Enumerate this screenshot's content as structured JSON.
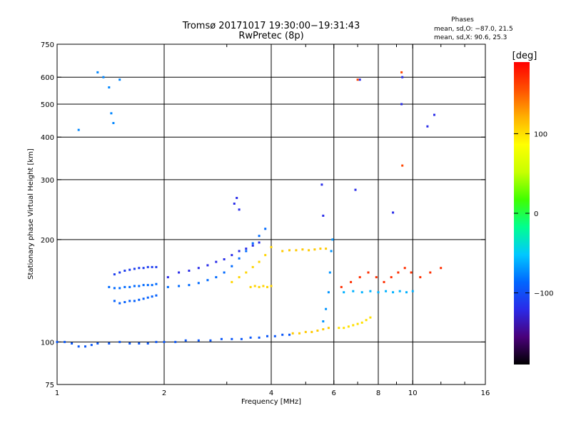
{
  "header": {
    "title": "Tromsø 20171017 19:30:00−19:31:43",
    "subtitle": "RwPretec (8p)",
    "phase_title": "Phases",
    "phase_line1": "mean, sd,O: −87.0, 21.5",
    "phase_line2": "mean, sd,X:  90.6, 25.3"
  },
  "colorbar": {
    "label": "[deg]",
    "range": [
      -190,
      190
    ],
    "ticks": [
      {
        "value": 100,
        "label": "100"
      },
      {
        "value": 0,
        "label": "0"
      },
      {
        "value": -100,
        "label": "−100"
      }
    ],
    "stops": [
      "#000000",
      "#4a007a",
      "#2a2ae8",
      "#0066ff",
      "#00c8ff",
      "#00ff90",
      "#40ff00",
      "#c8ff00",
      "#ffff00",
      "#ffb000",
      "#ff5000",
      "#ff0000"
    ]
  },
  "chart_data": {
    "type": "scatter",
    "title": "Tromsø 20171017 19:30:00−19:31:43",
    "subtitle": "RwPretec (8p)",
    "xlabel": "Frequency [MHz]",
    "ylabel": "Stationary phase Virtual Height [km]",
    "xscale": "log",
    "yscale": "log",
    "xlim": [
      1,
      16
    ],
    "ylim": [
      75,
      750
    ],
    "x_ticks": [
      {
        "value": 1,
        "label": "1"
      },
      {
        "value": 2,
        "label": "2"
      },
      {
        "value": 4,
        "label": "4"
      },
      {
        "value": 6,
        "label": "6"
      },
      {
        "value": 8,
        "label": "8"
      },
      {
        "value": 10,
        "label": "10"
      },
      {
        "value": 16,
        "label": "16"
      }
    ],
    "y_ticks": [
      {
        "value": 75,
        "label": "75"
      },
      {
        "value": 100,
        "label": "100"
      },
      {
        "value": 200,
        "label": "200"
      },
      {
        "value": 300,
        "label": "300"
      },
      {
        "value": 400,
        "label": "400"
      },
      {
        "value": 500,
        "label": "500"
      },
      {
        "value": 600,
        "label": "600"
      },
      {
        "value": 750,
        "label": "750"
      }
    ],
    "grid_x": [
      2,
      4,
      6,
      8,
      10
    ],
    "grid_y": [
      100,
      200,
      300,
      400,
      500,
      600
    ],
    "minor_x": [
      3,
      5,
      7,
      9,
      12,
      14
    ],
    "series": [
      {
        "x": [
          1.0,
          1.05,
          1.1,
          1.15,
          1.2,
          1.25,
          1.3,
          1.4,
          1.5,
          1.6,
          1.7,
          1.8,
          1.9,
          2.0,
          2.15,
          2.3,
          2.5,
          2.7,
          2.9,
          3.1,
          3.3,
          3.5,
          3.7,
          3.9,
          4.1,
          4.3,
          4.5
        ],
        "y": [
          100,
          100,
          99,
          97,
          97,
          98,
          99,
          99,
          100,
          99,
          99,
          99,
          100,
          100,
          100,
          101,
          101,
          101,
          102,
          102,
          102,
          103,
          103,
          104,
          104,
          105,
          105
        ],
        "phase": -95
      },
      {
        "x": [
          4.6,
          4.8,
          5.0,
          5.2,
          5.4,
          5.6,
          5.8
        ],
        "y": [
          106,
          106,
          107,
          107,
          108,
          109,
          110
        ],
        "phase": 110
      },
      {
        "x": [
          5.6,
          5.7,
          5.8,
          5.85,
          5.9,
          5.95
        ],
        "y": [
          115,
          125,
          140,
          160,
          185,
          200
        ],
        "phase": -70
      },
      {
        "x": [
          6.2,
          6.4,
          6.6,
          6.8,
          7.0,
          7.2,
          7.4,
          7.6
        ],
        "y": [
          110,
          110,
          111,
          112,
          113,
          114,
          116,
          118
        ],
        "phase": 100
      },
      {
        "x": [
          1.4,
          1.45,
          1.5,
          1.55,
          1.6,
          1.65,
          1.7,
          1.75,
          1.8,
          1.85,
          1.9
        ],
        "y": [
          145,
          144,
          144,
          145,
          145,
          146,
          146,
          147,
          147,
          147,
          148
        ],
        "phase": -85
      },
      {
        "x": [
          1.45,
          1.5,
          1.55,
          1.6,
          1.65,
          1.7,
          1.75,
          1.8,
          1.85,
          1.9
        ],
        "y": [
          132,
          130,
          131,
          132,
          132,
          133,
          134,
          135,
          136,
          137
        ],
        "phase": -90
      },
      {
        "x": [
          1.45,
          1.5,
          1.55,
          1.6,
          1.65,
          1.7,
          1.75,
          1.8,
          1.85,
          1.9
        ],
        "y": [
          158,
          160,
          162,
          163,
          164,
          165,
          165,
          166,
          166,
          166
        ],
        "phase": -110
      },
      {
        "x": [
          2.05,
          2.2,
          2.35,
          2.5,
          2.65,
          2.8,
          2.95,
          3.1,
          3.25,
          3.4,
          3.55,
          3.7,
          3.85
        ],
        "y": [
          145,
          146,
          147,
          149,
          152,
          155,
          160,
          167,
          176,
          185,
          195,
          205,
          215
        ],
        "phase": -85
      },
      {
        "x": [
          2.05,
          2.2,
          2.35,
          2.5,
          2.65,
          2.8,
          2.95,
          3.1,
          3.25,
          3.4,
          3.55,
          3.7
        ],
        "y": [
          155,
          160,
          162,
          165,
          168,
          172,
          175,
          180,
          185,
          188,
          192,
          196
        ],
        "phase": -120
      },
      {
        "x": [
          3.1,
          3.25,
          3.4,
          3.55,
          3.7,
          3.85,
          4.0
        ],
        "y": [
          150,
          155,
          160,
          166,
          172,
          180,
          190
        ],
        "phase": 105
      },
      {
        "x": [
          3.5,
          3.6,
          3.7,
          3.8,
          3.9,
          4.0
        ],
        "y": [
          145,
          146,
          145,
          146,
          145,
          146
        ],
        "phase": 105
      },
      {
        "x": [
          4.3,
          4.5,
          4.7,
          4.9,
          5.1,
          5.3,
          5.5,
          5.7
        ],
        "y": [
          185,
          186,
          186,
          187,
          186,
          187,
          188,
          188
        ],
        "phase": 110
      },
      {
        "x": [
          6.3,
          6.7,
          7.1,
          7.5,
          7.9,
          8.3,
          8.7,
          9.1,
          9.5,
          9.9,
          10.5,
          11.2,
          12.0
        ],
        "y": [
          145,
          150,
          155,
          160,
          155,
          150,
          155,
          160,
          165,
          160,
          155,
          160,
          165
        ],
        "phase": 170
      },
      {
        "x": [
          6.4,
          6.8,
          7.2,
          7.6,
          8.0,
          8.4,
          8.8,
          9.2,
          9.6,
          10.0
        ],
        "y": [
          140,
          141,
          140,
          141,
          140,
          141,
          140,
          141,
          140,
          141
        ],
        "phase": -60
      },
      {
        "x": [
          1.15,
          1.3,
          1.35,
          1.4,
          1.42,
          1.44,
          1.5
        ],
        "y": [
          420,
          620,
          600,
          560,
          470,
          440,
          590
        ],
        "phase": -75
      },
      {
        "x": [
          3.15,
          3.2,
          3.25,
          5.55,
          5.6,
          6.9,
          7.1,
          8.8,
          9.3,
          9.35,
          11.0,
          11.5
        ],
        "y": [
          255,
          265,
          245,
          290,
          235,
          280,
          590,
          240,
          500,
          600,
          430,
          465
        ],
        "phase": -120
      },
      {
        "x": [
          7.0,
          9.3,
          9.35
        ],
        "y": [
          590,
          620,
          330
        ],
        "phase": 160
      }
    ]
  },
  "axes_labels": {
    "xlabel": "Frequency [MHz]",
    "ylabel": "Stationary phase Virtual Height [km]"
  }
}
